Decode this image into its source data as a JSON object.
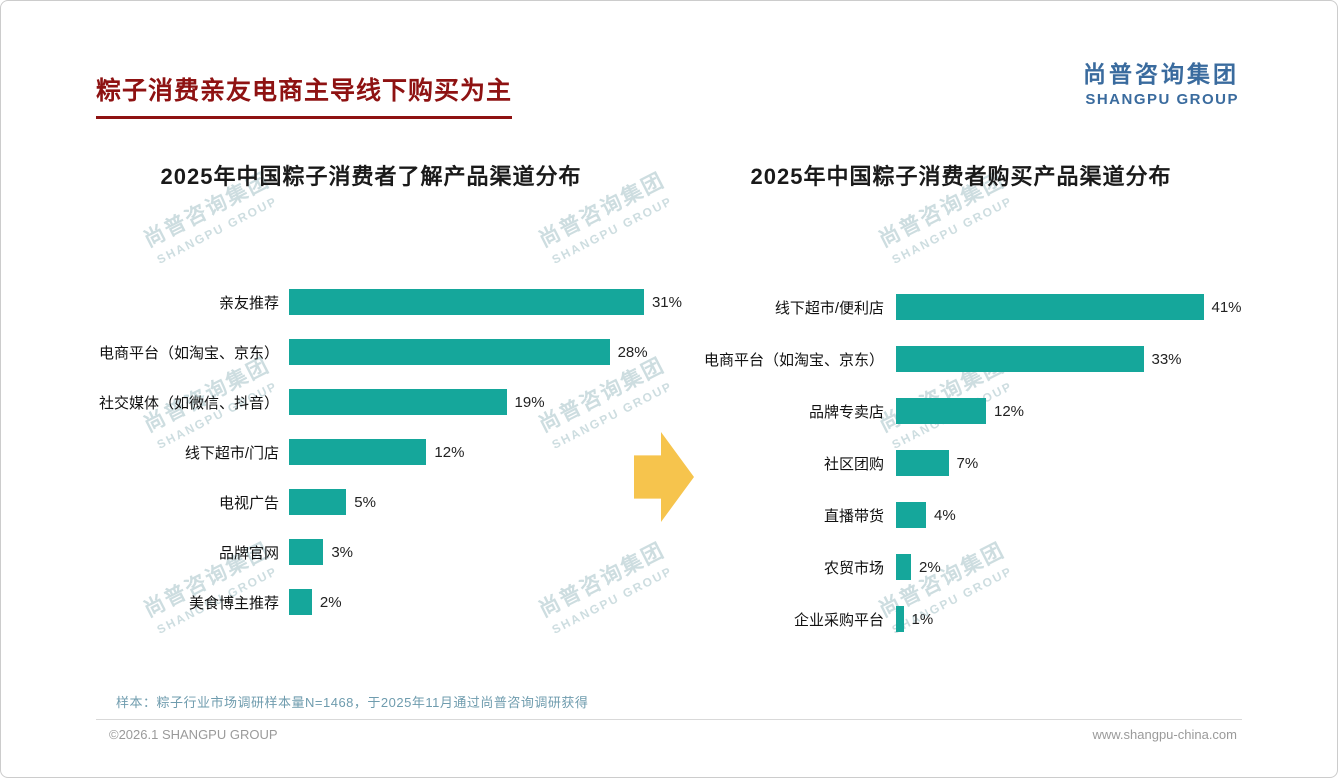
{
  "page": {
    "title": "粽子消费亲友电商主导线下购买为主",
    "logo": {
      "cn": "尚普咨询集团",
      "en": "SHANGPU GROUP"
    },
    "watermark": {
      "cn": "尚普咨询集团",
      "en": "SHANGPU GROUP"
    },
    "footnote": "样本：粽子行业市场调研样本量N=1468，于2025年11月通过尚普咨询调研获得",
    "footer": {
      "left": "©2026.1 SHANGPU GROUP",
      "right": "www.shangpu-china.com"
    }
  },
  "colors": {
    "bar": "#15a79b",
    "title_red": "#8e1212",
    "arrow_yellow": "#f6c44d",
    "logo_blue": "#3a6b9e"
  },
  "chart_data": [
    {
      "type": "bar",
      "orientation": "horizontal",
      "title": "2025年中国粽子消费者了解产品渠道分布",
      "categories": [
        "亲友推荐",
        "电商平台（如淘宝、京东）",
        "社交媒体（如微信、抖音）",
        "线下超市/门店",
        "电视广告",
        "品牌官网",
        "美食博主推荐"
      ],
      "values": [
        31,
        28,
        19,
        12,
        5,
        3,
        2
      ],
      "unit": "%",
      "xlim": [
        0,
        35
      ],
      "grid": false,
      "bar_color": "#15a79b"
    },
    {
      "type": "bar",
      "orientation": "horizontal",
      "title": "2025年中国粽子消费者购买产品渠道分布",
      "categories": [
        "线下超市/便利店",
        "电商平台（如淘宝、京东）",
        "品牌专卖店",
        "社区团购",
        "直播带货",
        "农贸市场",
        "企业采购平台"
      ],
      "values": [
        41,
        33,
        12,
        7,
        4,
        2,
        1
      ],
      "unit": "%",
      "xlim": [
        0,
        45
      ],
      "grid": false,
      "bar_color": "#15a79b"
    }
  ]
}
